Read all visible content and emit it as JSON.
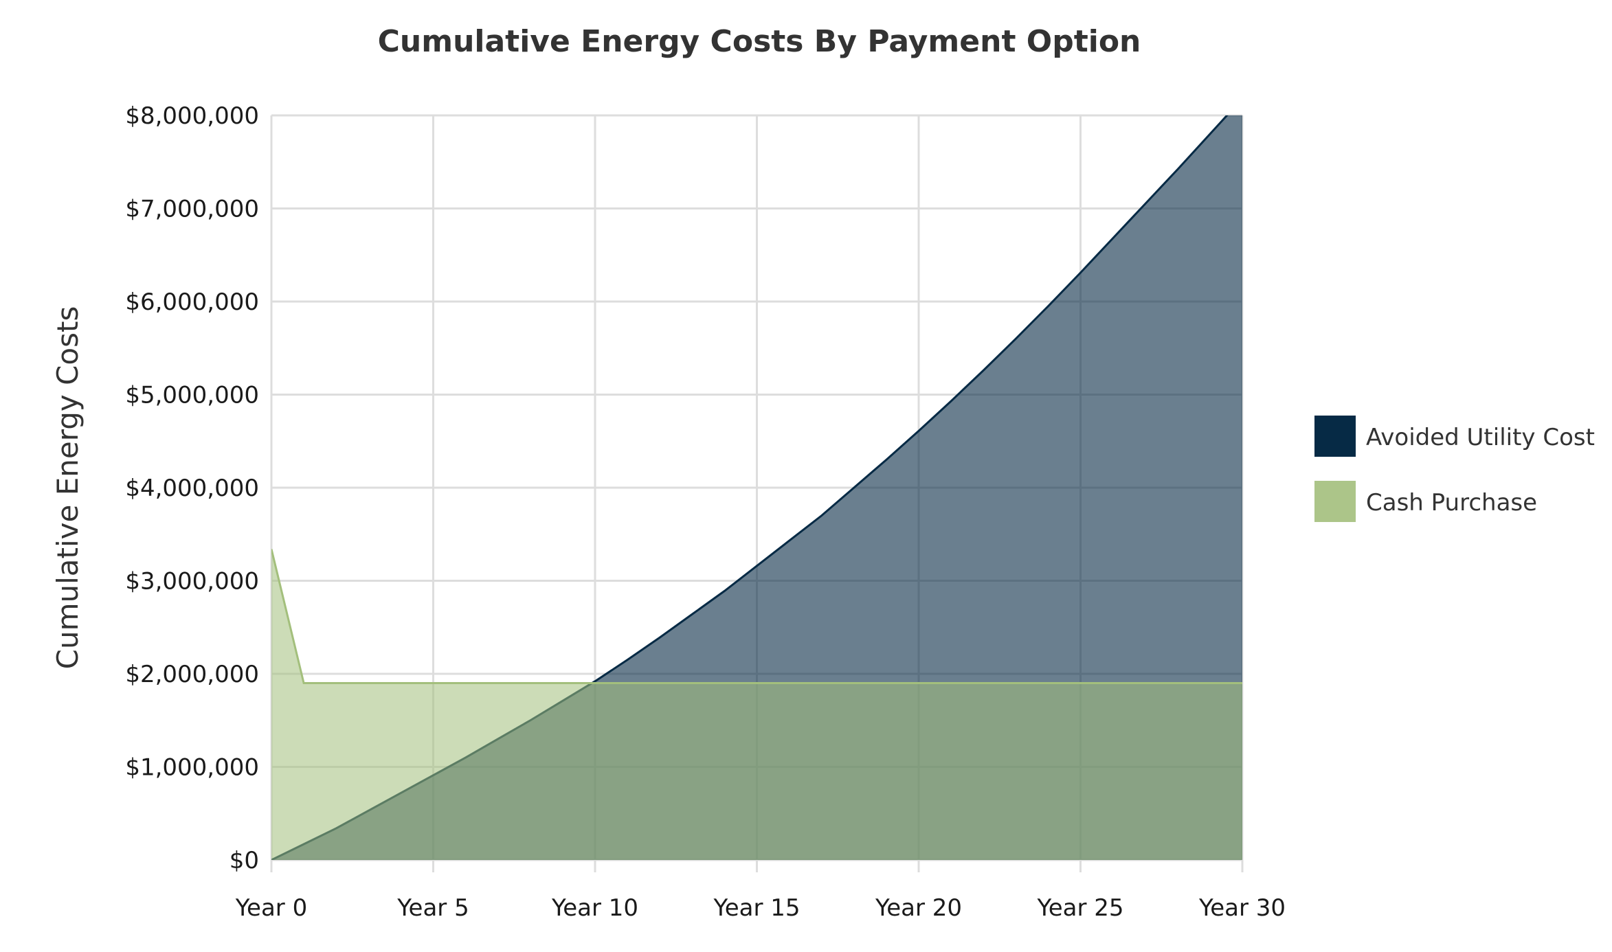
{
  "chart_data": {
    "type": "area",
    "title": "Cumulative Energy Costs By Payment Option",
    "xlabel": "",
    "ylabel": "Cumulative Energy Costs",
    "x": [
      0,
      1,
      2,
      3,
      4,
      5,
      6,
      7,
      8,
      9,
      10,
      11,
      12,
      13,
      14,
      15,
      16,
      17,
      18,
      19,
      20,
      21,
      22,
      23,
      24,
      25,
      26,
      27,
      28,
      29,
      30
    ],
    "x_tick_labels": [
      "Year 0",
      "Year 5",
      "Year 10",
      "Year 15",
      "Year 20",
      "Year 25",
      "Year 30"
    ],
    "x_tick_values": [
      0,
      5,
      10,
      15,
      20,
      25,
      30
    ],
    "y_tick_labels": [
      "$0",
      "$1,000,000",
      "$2,000,000",
      "$3,000,000",
      "$4,000,000",
      "$5,000,000",
      "$6,000,000",
      "$7,000,000",
      "$8,000,000"
    ],
    "y_tick_values": [
      0,
      1000000,
      2000000,
      3000000,
      4000000,
      5000000,
      6000000,
      7000000,
      8000000
    ],
    "xlim": [
      0,
      30
    ],
    "ylim": [
      0,
      8000000
    ],
    "grid": true,
    "legend_position": "right",
    "series": [
      {
        "name": "Avoided Utility Cost",
        "color": "#062a45",
        "fill_opacity": 0.6,
        "values": [
          0,
          170000,
          340000,
          530000,
          720000,
          910000,
          1100000,
          1300000,
          1500000,
          1710000,
          1920000,
          2150000,
          2390000,
          2640000,
          2890000,
          3160000,
          3430000,
          3700000,
          4000000,
          4300000,
          4610000,
          4930000,
          5260000,
          5600000,
          5950000,
          6310000,
          6680000,
          7050000,
          7420000,
          7800000,
          8180000
        ]
      },
      {
        "name": "Cash Purchase",
        "color": "#a3bf7c",
        "fill_opacity": 0.55,
        "values": [
          3340000,
          1900000,
          1900000,
          1900000,
          1900000,
          1900000,
          1900000,
          1900000,
          1900000,
          1900000,
          1900000,
          1900000,
          1900000,
          1900000,
          1900000,
          1900000,
          1900000,
          1900000,
          1900000,
          1900000,
          1900000,
          1900000,
          1900000,
          1900000,
          1900000,
          1900000,
          1900000,
          1900000,
          1900000,
          1900000,
          1900000
        ]
      }
    ]
  }
}
